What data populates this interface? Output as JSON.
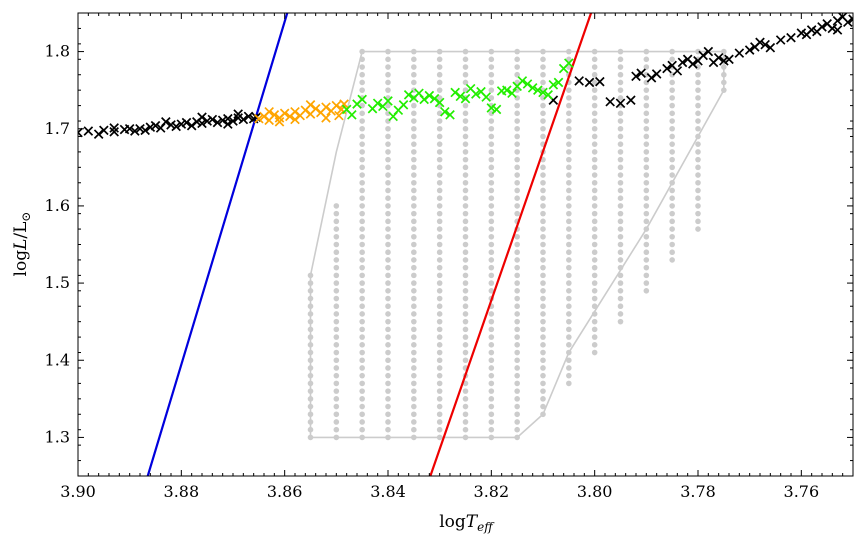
{
  "chart_data": {
    "type": "scatter",
    "xlabel": "logT_eff",
    "ylabel": "logL/L_sun",
    "xlabel_parts": {
      "base": "log",
      "var": "T",
      "sub": "eff"
    },
    "ylabel_parts": {
      "base": "log",
      "var": "L",
      "mid": "/L",
      "sub": "⊙"
    },
    "xlim": [
      3.9,
      3.75
    ],
    "ylim": [
      1.25,
      1.85
    ],
    "x_reversed": true,
    "x_ticks": [
      "3.90",
      "3.88",
      "3.86",
      "3.84",
      "3.82",
      "3.80",
      "3.78",
      "3.76"
    ],
    "y_ticks": [
      "1.3",
      "1.4",
      "1.5",
      "1.6",
      "1.7",
      "1.8"
    ],
    "colors": {
      "blue_edge": "#0000dd",
      "red_edge": "#ee0000",
      "grid_points": "#cccccc",
      "track_black": "#000000",
      "track_orange": "#ffa500",
      "track_green": "#22ee00"
    },
    "instability_strip": {
      "blue_edge": [
        [
          3.8865,
          1.25
        ],
        [
          3.8595,
          1.85
        ]
      ],
      "red_edge": [
        [
          3.8318,
          1.25
        ],
        [
          3.8007,
          1.85
        ]
      ]
    },
    "model_grid": {
      "columns": [
        [
          3.855,
          1.3,
          1.51
        ],
        [
          3.85,
          1.3,
          1.6
        ],
        [
          3.845,
          1.3,
          1.8
        ],
        [
          3.84,
          1.3,
          1.8
        ],
        [
          3.835,
          1.3,
          1.8
        ],
        [
          3.83,
          1.3,
          1.8
        ],
        [
          3.825,
          1.3,
          1.8
        ],
        [
          3.82,
          1.3,
          1.8
        ],
        [
          3.815,
          1.3,
          1.8
        ],
        [
          3.81,
          1.33,
          1.8
        ],
        [
          3.805,
          1.37,
          1.8
        ],
        [
          3.8,
          1.41,
          1.8
        ],
        [
          3.795,
          1.45,
          1.8
        ],
        [
          3.79,
          1.49,
          1.8
        ],
        [
          3.785,
          1.53,
          1.8
        ],
        [
          3.78,
          1.57,
          1.8
        ],
        [
          3.775,
          1.75,
          1.8
        ]
      ],
      "outline": [
        [
          3.855,
          1.51
        ],
        [
          3.85,
          1.67
        ],
        [
          3.845,
          1.8
        ],
        [
          3.775,
          1.8
        ],
        [
          3.775,
          1.75
        ],
        [
          3.79,
          1.57
        ],
        [
          3.805,
          1.41
        ],
        [
          3.81,
          1.33
        ],
        [
          3.815,
          1.3
        ],
        [
          3.855,
          1.3
        ],
        [
          3.855,
          1.51
        ]
      ],
      "step": 0.01
    },
    "series": [
      {
        "color": "track_black",
        "points": [
          [
            3.9,
            1.695
          ],
          [
            3.898,
            1.697
          ],
          [
            3.896,
            1.693
          ],
          [
            3.895,
            1.698
          ],
          [
            3.893,
            1.696
          ],
          [
            3.891,
            1.699
          ],
          [
            3.89,
            1.7
          ],
          [
            3.889,
            1.697
          ],
          [
            3.888,
            1.7
          ],
          [
            3.886,
            1.702
          ],
          [
            3.885,
            1.704
          ],
          [
            3.884,
            1.701
          ],
          [
            3.882,
            1.705
          ],
          [
            3.881,
            1.703
          ],
          [
            3.88,
            1.706
          ],
          [
            3.879,
            1.708
          ],
          [
            3.878,
            1.704
          ],
          [
            3.877,
            1.709
          ],
          [
            3.876,
            1.707
          ],
          [
            3.875,
            1.71
          ],
          [
            3.874,
            1.712
          ],
          [
            3.873,
            1.708
          ],
          [
            3.872,
            1.711
          ],
          [
            3.871,
            1.713
          ],
          [
            3.87,
            1.71
          ],
          [
            3.869,
            1.714
          ],
          [
            3.868,
            1.712
          ],
          [
            3.867,
            1.716
          ],
          [
            3.866,
            1.713
          ],
          [
            3.8655,
            1.715
          ],
          [
            3.893,
            1.701
          ],
          [
            3.887,
            1.698
          ],
          [
            3.883,
            1.709
          ],
          [
            3.876,
            1.715
          ],
          [
            3.871,
            1.706
          ],
          [
            3.869,
            1.719
          ],
          [
            3.808,
            1.737
          ],
          [
            3.803,
            1.762
          ],
          [
            3.801,
            1.76
          ],
          [
            3.799,
            1.761
          ],
          [
            3.797,
            1.735
          ],
          [
            3.795,
            1.733
          ],
          [
            3.793,
            1.737
          ],
          [
            3.792,
            1.768
          ],
          [
            3.791,
            1.772
          ],
          [
            3.789,
            1.766
          ],
          [
            3.788,
            1.771
          ],
          [
            3.786,
            1.778
          ],
          [
            3.785,
            1.782
          ],
          [
            3.784,
            1.775
          ],
          [
            3.783,
            1.786
          ],
          [
            3.782,
            1.79
          ],
          [
            3.781,
            1.784
          ],
          [
            3.78,
            1.788
          ],
          [
            3.779,
            1.795
          ],
          [
            3.778,
            1.8
          ],
          [
            3.777,
            1.786
          ],
          [
            3.776,
            1.792
          ],
          [
            3.775,
            1.788
          ],
          [
            3.774,
            1.79
          ],
          [
            3.772,
            1.798
          ],
          [
            3.77,
            1.802
          ],
          [
            3.769,
            1.806
          ],
          [
            3.768,
            1.812
          ],
          [
            3.767,
            1.809
          ],
          [
            3.766,
            1.805
          ],
          [
            3.764,
            1.815
          ],
          [
            3.762,
            1.818
          ],
          [
            3.76,
            1.824
          ],
          [
            3.759,
            1.822
          ],
          [
            3.758,
            1.828
          ],
          [
            3.757,
            1.826
          ],
          [
            3.756,
            1.832
          ],
          [
            3.755,
            1.836
          ],
          [
            3.754,
            1.83
          ],
          [
            3.753,
            1.84
          ],
          [
            3.752,
            1.845
          ],
          [
            3.751,
            1.838
          ],
          [
            3.75,
            1.842
          ],
          [
            3.753,
            1.828
          ]
        ]
      },
      {
        "color": "track_orange",
        "points": [
          [
            3.865,
            1.713
          ],
          [
            3.864,
            1.716
          ],
          [
            3.863,
            1.711
          ],
          [
            3.862,
            1.718
          ],
          [
            3.861,
            1.714
          ],
          [
            3.86,
            1.72
          ],
          [
            3.859,
            1.716
          ],
          [
            3.858,
            1.722
          ],
          [
            3.857,
            1.717
          ],
          [
            3.856,
            1.724
          ],
          [
            3.855,
            1.719
          ],
          [
            3.854,
            1.726
          ],
          [
            3.853,
            1.721
          ],
          [
            3.852,
            1.728
          ],
          [
            3.851,
            1.723
          ],
          [
            3.85,
            1.73
          ],
          [
            3.849,
            1.725
          ],
          [
            3.8485,
            1.732
          ],
          [
            3.861,
            1.709
          ],
          [
            3.858,
            1.712
          ],
          [
            3.855,
            1.731
          ],
          [
            3.852,
            1.714
          ],
          [
            3.8495,
            1.717
          ],
          [
            3.863,
            1.722
          ]
        ]
      },
      {
        "color": "track_green",
        "points": [
          [
            3.848,
            1.725
          ],
          [
            3.847,
            1.718
          ],
          [
            3.846,
            1.732
          ],
          [
            3.845,
            1.738
          ],
          [
            3.843,
            1.726
          ],
          [
            3.842,
            1.733
          ],
          [
            3.841,
            1.729
          ],
          [
            3.84,
            1.736
          ],
          [
            3.839,
            1.716
          ],
          [
            3.838,
            1.724
          ],
          [
            3.837,
            1.731
          ],
          [
            3.836,
            1.744
          ],
          [
            3.835,
            1.74
          ],
          [
            3.834,
            1.746
          ],
          [
            3.833,
            1.738
          ],
          [
            3.832,
            1.743
          ],
          [
            3.831,
            1.739
          ],
          [
            3.83,
            1.734
          ],
          [
            3.829,
            1.722
          ],
          [
            3.828,
            1.718
          ],
          [
            3.827,
            1.747
          ],
          [
            3.826,
            1.742
          ],
          [
            3.825,
            1.739
          ],
          [
            3.824,
            1.752
          ],
          [
            3.823,
            1.745
          ],
          [
            3.822,
            1.748
          ],
          [
            3.821,
            1.741
          ],
          [
            3.82,
            1.727
          ],
          [
            3.819,
            1.725
          ],
          [
            3.818,
            1.749
          ],
          [
            3.817,
            1.75
          ],
          [
            3.816,
            1.746
          ],
          [
            3.815,
            1.755
          ],
          [
            3.814,
            1.762
          ],
          [
            3.813,
            1.758
          ],
          [
            3.812,
            1.753
          ],
          [
            3.811,
            1.75
          ],
          [
            3.81,
            1.747
          ],
          [
            3.809,
            1.744
          ],
          [
            3.808,
            1.757
          ],
          [
            3.807,
            1.76
          ],
          [
            3.806,
            1.778
          ],
          [
            3.805,
            1.785
          ]
        ]
      }
    ]
  }
}
